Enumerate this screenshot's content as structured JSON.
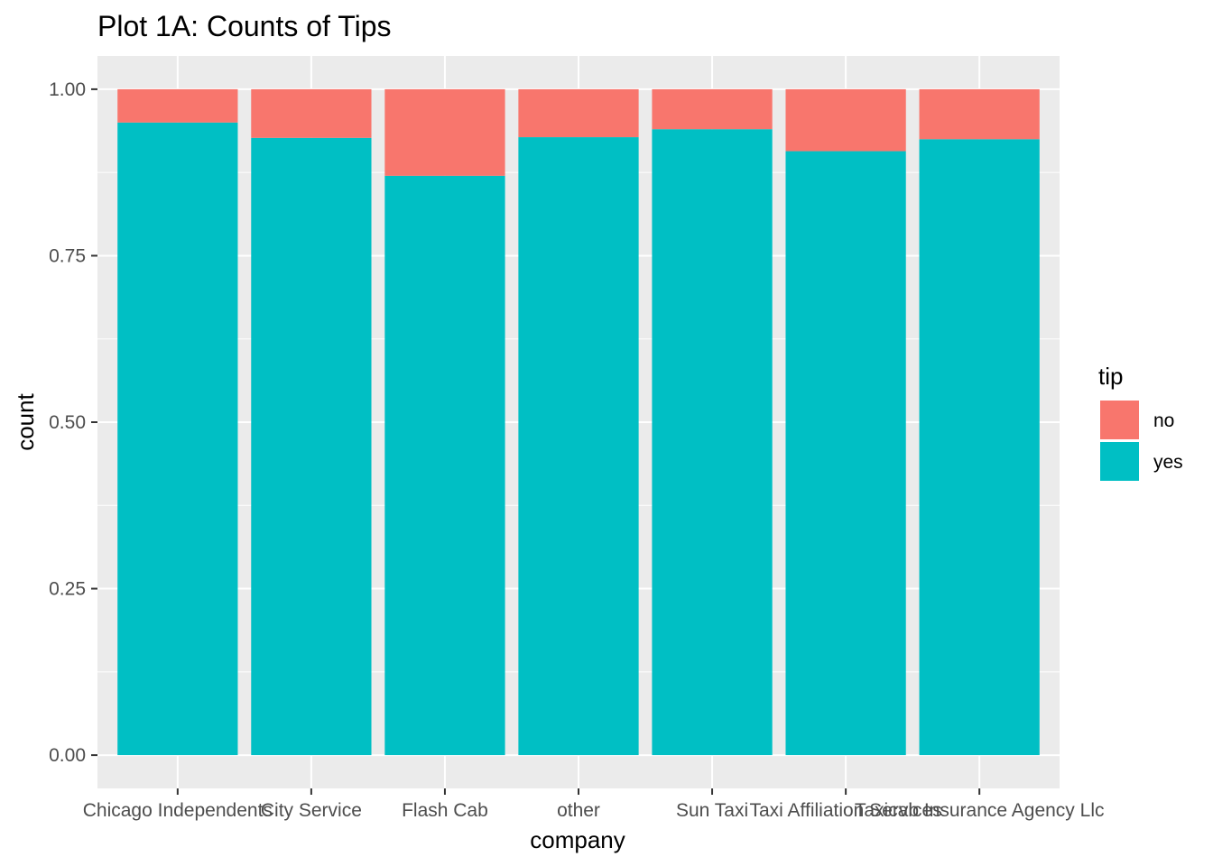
{
  "chart_data": {
    "type": "bar",
    "stacked": true,
    "title": "Plot 1A: Counts of Tips",
    "xlabel": "company",
    "ylabel": "count",
    "categories": [
      "Chicago Independents",
      "City Service",
      "Flash Cab",
      "other",
      "Sun Taxi",
      "Taxi Affiliation Services",
      "Taxicab Insurance Agency Llc"
    ],
    "series": [
      {
        "name": "yes",
        "color": "#00BFC4",
        "values": [
          0.95,
          0.927,
          0.87,
          0.928,
          0.94,
          0.907,
          0.925
        ]
      },
      {
        "name": "no",
        "color": "#F8766D",
        "values": [
          0.05,
          0.073,
          0.13,
          0.072,
          0.06,
          0.093,
          0.075
        ]
      }
    ],
    "ylim": [
      -0.05,
      1.05
    ],
    "yticks": [
      0,
      0.25,
      0.5,
      0.75,
      1.0
    ],
    "ytick_labels": [
      "0.00",
      "0.25",
      "0.50",
      "0.75",
      "1.00"
    ],
    "grid": true,
    "legend": {
      "title": "tip",
      "placement": "right",
      "entries": [
        {
          "label": "no",
          "color": "#F8766D"
        },
        {
          "label": "yes",
          "color": "#00BFC4"
        }
      ]
    },
    "panel_background": "#EBEBEB",
    "grid_color": "#FFFFFF"
  }
}
